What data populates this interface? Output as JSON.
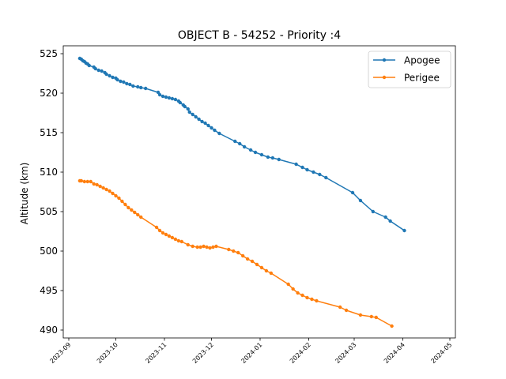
{
  "chart_data": {
    "type": "line",
    "title": "OBJECT B - 54252 - Priority :4",
    "xlabel": "",
    "ylabel": "Altitude (km)",
    "x_axis_type": "date",
    "xlim": [
      "2023-09-01",
      "2024-05-01"
    ],
    "ylim": [
      489,
      526
    ],
    "x_ticks": [
      "2023-09",
      "2023-10",
      "2023-11",
      "2023-12",
      "2024-01",
      "2024-02",
      "2024-03",
      "2024-04",
      "2024-05"
    ],
    "x_tick_dates": [
      "2023-09-01",
      "2023-10-01",
      "2023-11-01",
      "2023-12-01",
      "2024-01-01",
      "2024-02-01",
      "2024-03-01",
      "2024-04-01",
      "2024-05-01"
    ],
    "y_ticks": [
      490,
      495,
      500,
      505,
      510,
      515,
      520,
      525
    ],
    "grid": false,
    "legend_position": "top-right",
    "series": [
      {
        "name": "Apogee",
        "color": "#1f77b4",
        "points": [
          [
            "2023-09-08",
            524.4
          ],
          [
            "2023-09-09",
            524.3
          ],
          [
            "2023-09-10",
            524.1
          ],
          [
            "2023-09-11",
            524.0
          ],
          [
            "2023-09-12",
            523.8
          ],
          [
            "2023-09-13",
            523.7
          ],
          [
            "2023-09-14",
            523.5
          ],
          [
            "2023-09-17",
            523.3
          ],
          [
            "2023-09-18",
            523.1
          ],
          [
            "2023-09-20",
            522.9
          ],
          [
            "2023-09-22",
            522.8
          ],
          [
            "2023-09-24",
            522.6
          ],
          [
            "2023-09-25",
            522.4
          ],
          [
            "2023-09-27",
            522.2
          ],
          [
            "2023-09-29",
            522.0
          ],
          [
            "2023-10-01",
            521.9
          ],
          [
            "2023-10-02",
            521.7
          ],
          [
            "2023-10-04",
            521.5
          ],
          [
            "2023-10-06",
            521.4
          ],
          [
            "2023-10-08",
            521.2
          ],
          [
            "2023-10-10",
            521.1
          ],
          [
            "2023-10-12",
            520.9
          ],
          [
            "2023-10-15",
            520.8
          ],
          [
            "2023-10-17",
            520.7
          ],
          [
            "2023-10-20",
            520.6
          ],
          [
            "2023-10-28",
            520.1
          ],
          [
            "2023-10-29",
            519.8
          ],
          [
            "2023-10-31",
            519.6
          ],
          [
            "2023-11-02",
            519.5
          ],
          [
            "2023-11-04",
            519.4
          ],
          [
            "2023-11-06",
            519.3
          ],
          [
            "2023-11-08",
            519.2
          ],
          [
            "2023-11-10",
            519.0
          ],
          [
            "2023-11-11",
            518.8
          ],
          [
            "2023-11-13",
            518.5
          ],
          [
            "2023-11-14",
            518.3
          ],
          [
            "2023-11-16",
            518.0
          ],
          [
            "2023-11-17",
            517.6
          ],
          [
            "2023-11-19",
            517.3
          ],
          [
            "2023-11-21",
            517.0
          ],
          [
            "2023-11-23",
            516.7
          ],
          [
            "2023-11-25",
            516.4
          ],
          [
            "2023-11-27",
            516.2
          ],
          [
            "2023-11-29",
            515.9
          ],
          [
            "2023-12-01",
            515.6
          ],
          [
            "2023-12-03",
            515.3
          ],
          [
            "2023-12-06",
            514.9
          ],
          [
            "2023-12-16",
            513.9
          ],
          [
            "2023-12-19",
            513.6
          ],
          [
            "2023-12-22",
            513.2
          ],
          [
            "2023-12-26",
            512.8
          ],
          [
            "2023-12-29",
            512.5
          ],
          [
            "2024-01-02",
            512.2
          ],
          [
            "2024-01-06",
            511.9
          ],
          [
            "2024-01-09",
            511.8
          ],
          [
            "2024-01-13",
            511.6
          ],
          [
            "2024-01-24",
            511.0
          ],
          [
            "2024-01-28",
            510.6
          ],
          [
            "2024-01-31",
            510.3
          ],
          [
            "2024-02-04",
            510.0
          ],
          [
            "2024-02-08",
            509.7
          ],
          [
            "2024-02-12",
            509.3
          ],
          [
            "2024-02-29",
            507.4
          ],
          [
            "2024-03-05",
            506.4
          ],
          [
            "2024-03-13",
            505.0
          ],
          [
            "2024-03-21",
            504.3
          ],
          [
            "2024-03-24",
            503.8
          ],
          [
            "2024-04-02",
            502.6
          ]
        ]
      },
      {
        "name": "Perigee",
        "color": "#ff7f0e",
        "points": [
          [
            "2023-09-08",
            508.9
          ],
          [
            "2023-09-09",
            508.9
          ],
          [
            "2023-09-11",
            508.8
          ],
          [
            "2023-09-13",
            508.8
          ],
          [
            "2023-09-15",
            508.8
          ],
          [
            "2023-09-17",
            508.5
          ],
          [
            "2023-09-19",
            508.4
          ],
          [
            "2023-09-21",
            508.2
          ],
          [
            "2023-09-23",
            508.0
          ],
          [
            "2023-09-25",
            507.8
          ],
          [
            "2023-09-27",
            507.6
          ],
          [
            "2023-09-29",
            507.3
          ],
          [
            "2023-10-01",
            507.0
          ],
          [
            "2023-10-03",
            506.7
          ],
          [
            "2023-10-05",
            506.3
          ],
          [
            "2023-10-07",
            505.9
          ],
          [
            "2023-10-09",
            505.5
          ],
          [
            "2023-10-11",
            505.2
          ],
          [
            "2023-10-13",
            504.9
          ],
          [
            "2023-10-15",
            504.6
          ],
          [
            "2023-10-17",
            504.3
          ],
          [
            "2023-10-27",
            503.0
          ],
          [
            "2023-10-29",
            502.6
          ],
          [
            "2023-10-31",
            502.3
          ],
          [
            "2023-11-02",
            502.1
          ],
          [
            "2023-11-04",
            501.9
          ],
          [
            "2023-11-06",
            501.7
          ],
          [
            "2023-11-08",
            501.5
          ],
          [
            "2023-11-10",
            501.3
          ],
          [
            "2023-11-12",
            501.2
          ],
          [
            "2023-11-16",
            500.8
          ],
          [
            "2023-11-19",
            500.6
          ],
          [
            "2023-11-22",
            500.5
          ],
          [
            "2023-11-24",
            500.5
          ],
          [
            "2023-11-26",
            500.6
          ],
          [
            "2023-11-28",
            500.5
          ],
          [
            "2023-11-30",
            500.4
          ],
          [
            "2023-12-02",
            500.5
          ],
          [
            "2023-12-04",
            500.6
          ],
          [
            "2023-12-12",
            500.2
          ],
          [
            "2023-12-15",
            500.0
          ],
          [
            "2023-12-18",
            499.8
          ],
          [
            "2023-12-21",
            499.4
          ],
          [
            "2023-12-24",
            499.0
          ],
          [
            "2023-12-27",
            498.7
          ],
          [
            "2023-12-30",
            498.3
          ],
          [
            "2024-01-02",
            497.9
          ],
          [
            "2024-01-05",
            497.5
          ],
          [
            "2024-01-08",
            497.2
          ],
          [
            "2024-01-19",
            495.8
          ],
          [
            "2024-01-22",
            495.2
          ],
          [
            "2024-01-25",
            494.7
          ],
          [
            "2024-01-28",
            494.4
          ],
          [
            "2024-01-31",
            494.1
          ],
          [
            "2024-02-03",
            493.9
          ],
          [
            "2024-02-06",
            493.7
          ],
          [
            "2024-02-21",
            492.9
          ],
          [
            "2024-02-25",
            492.5
          ],
          [
            "2024-03-05",
            491.9
          ],
          [
            "2024-03-12",
            491.7
          ],
          [
            "2024-03-15",
            491.6
          ],
          [
            "2024-03-25",
            490.5
          ]
        ]
      }
    ]
  }
}
